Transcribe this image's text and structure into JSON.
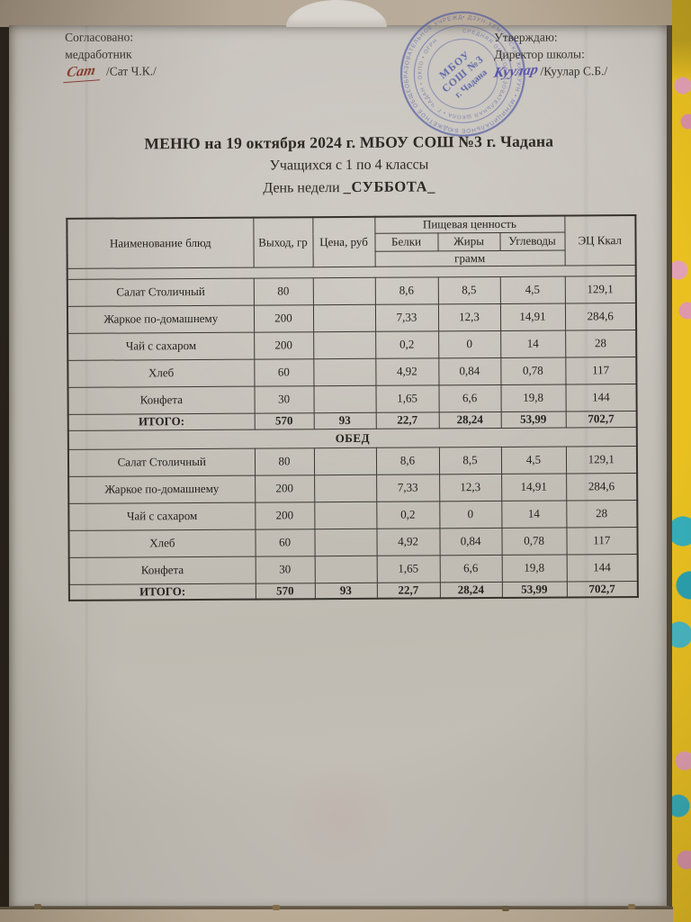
{
  "document": {
    "approval_left": {
      "line1": "Согласовано:",
      "line2": "медработник",
      "signature": "Сат",
      "name": "/Сат Ч.К./"
    },
    "approval_right": {
      "line1": "Утверждаю:",
      "line2": "Директор школы:",
      "signature": "Куулар",
      "name": "/Куулар С.Б./"
    },
    "stamp": {
      "center_line1": "МБОУ",
      "center_line2": "СОШ №3",
      "center_line3": "г. Чадана",
      "ring_outer": "• ДЗУН-ХЕМЧИКСКИЙ КОЖУУН • МУНИЦИПАЛЬНОЕ БЮДЖЕТНОЕ ОБЩЕОБРАЗОВАТЕЛЬНОЕ УЧРЕЖДЕНИЕ",
      "ring_inner": "СРЕДНЯЯ ОБЩЕОБРАЗОВАТЕЛЬНАЯ ШКОЛА • Г. ЧАДАН • ОКПО • ОГРН"
    },
    "title": {
      "line1": "МЕНЮ на 19 октября 2024 г. МБОУ СОШ №3 г. Чадана",
      "line2": "Учащихся с 1 по 4 классы",
      "line3_prefix": "День недели ",
      "line3_day": "_СУББОТА_"
    }
  },
  "table": {
    "headers": {
      "name": "Наименование блюд",
      "output": "Выход, гр",
      "price": "Цена, руб",
      "nutrition": "Пищевая ценность",
      "protein": "Белки",
      "fat": "Жиры",
      "carbs": "Углеводы",
      "gram": "грамм",
      "energy": "ЭЦ Ккал"
    },
    "sections": [
      {
        "title": "",
        "rows": [
          {
            "name": "Салат Столичный",
            "output": "80",
            "price": "",
            "protein": "8,6",
            "fat": "8,5",
            "carbs": "4,5",
            "energy": "129,1"
          },
          {
            "name": "Жаркое по-домашнему",
            "output": "200",
            "price": "",
            "protein": "7,33",
            "fat": "12,3",
            "carbs": "14,91",
            "energy": "284,6"
          },
          {
            "name": "Чай с сахаром",
            "output": "200",
            "price": "",
            "protein": "0,2",
            "fat": "0",
            "carbs": "14",
            "energy": "28"
          },
          {
            "name": "Хлеб",
            "output": "60",
            "price": "",
            "protein": "4,92",
            "fat": "0,84",
            "carbs": "0,78",
            "energy": "117"
          },
          {
            "name": "Конфета",
            "output": "30",
            "price": "",
            "protein": "1,65",
            "fat": "6,6",
            "carbs": "19,8",
            "energy": "144"
          }
        ],
        "total": {
          "label": "ИТОГО:",
          "output": "570",
          "price": "93",
          "protein": "22,7",
          "fat": "28,24",
          "carbs": "53,99",
          "energy": "702,7"
        }
      },
      {
        "title": "ОБЕД",
        "rows": [
          {
            "name": "Салат Столичный",
            "output": "80",
            "price": "",
            "protein": "8,6",
            "fat": "8,5",
            "carbs": "4,5",
            "energy": "129,1"
          },
          {
            "name": "Жаркое по-домашнему",
            "output": "200",
            "price": "",
            "protein": "7,33",
            "fat": "12,3",
            "carbs": "14,91",
            "energy": "284,6"
          },
          {
            "name": "Чай с сахаром",
            "output": "200",
            "price": "",
            "protein": "0,2",
            "fat": "0",
            "carbs": "14",
            "energy": "28"
          },
          {
            "name": "Хлеб",
            "output": "60",
            "price": "",
            "protein": "4,92",
            "fat": "0,84",
            "carbs": "0,78",
            "energy": "117"
          },
          {
            "name": "Конфета",
            "output": "30",
            "price": "",
            "protein": "1,65",
            "fat": "6,6",
            "carbs": "19,8",
            "energy": "144"
          }
        ],
        "total": {
          "label": "ИТОГО:",
          "output": "570",
          "price": "93",
          "protein": "22,7",
          "fat": "28,24",
          "carbs": "53,99",
          "energy": "702,7"
        }
      }
    ]
  },
  "colors": {
    "stamp_blue": "#4d58a4",
    "signature_red": "#8b3d32",
    "signature_blue": "#5a55a8",
    "paper_grey": "#c4c0b8",
    "wall_beige": "#b6a997",
    "floral_yellow": "#e9c020",
    "floral_pink": "#e2a0b4",
    "floral_teal": "#35aeba"
  }
}
